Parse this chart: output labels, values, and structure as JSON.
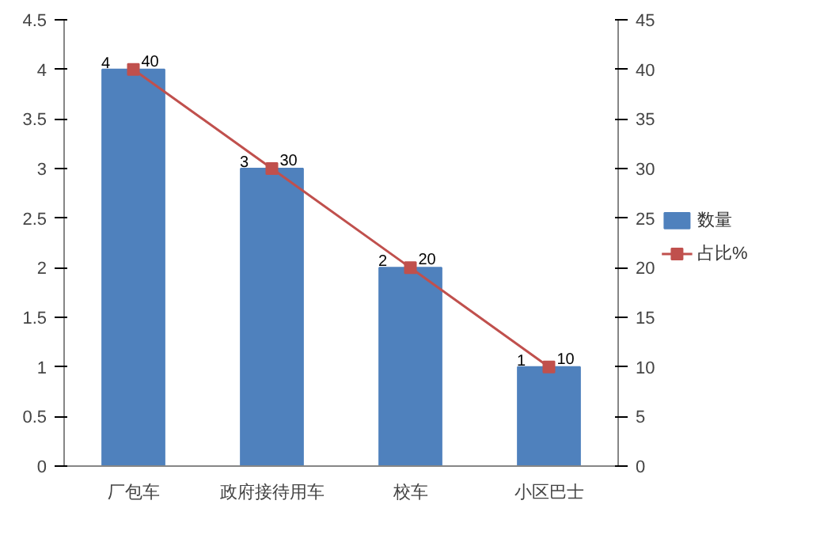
{
  "chart_data": {
    "type": "bar",
    "categories": [
      "厂包车",
      "政府接待用车",
      "校车",
      "小区巴士"
    ],
    "series": [
      {
        "name": "数量",
        "color": "#4f81bd",
        "values": [
          4,
          3,
          2,
          1
        ]
      },
      {
        "name": "占比%",
        "type": "line",
        "axis": "y2",
        "color": "#c0504d",
        "values": [
          40,
          30,
          20,
          10
        ],
        "marker": "square"
      }
    ],
    "ylim": [
      0,
      4.5
    ],
    "yticks": [
      0,
      0.5,
      1,
      1.5,
      2,
      2.5,
      3,
      3.5,
      4,
      4.5
    ],
    "y2lim": [
      0,
      45
    ],
    "y2ticks": [
      0,
      5,
      10,
      15,
      20,
      25,
      30,
      35,
      40,
      45
    ],
    "data_labels": true,
    "legend": "right",
    "grid": false
  }
}
